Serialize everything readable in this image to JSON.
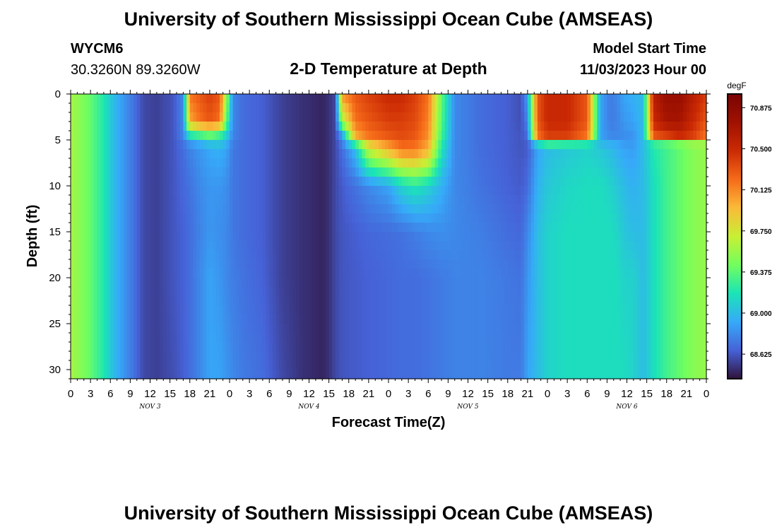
{
  "header": {
    "title": "University of Southern Mississippi Ocean Cube (AMSEAS)",
    "station": "WYCM6",
    "coordinates": "30.3260N  89.3260W",
    "subtitle": "2-D Temperature at Depth",
    "model_start_label": "Model Start Time",
    "model_start_value": "11/03/2023 Hour 00"
  },
  "footer": {
    "title": "University of Southern Mississippi Ocean Cube (AMSEAS)"
  },
  "chart_data": {
    "type": "heatmap",
    "title": "2-D Temperature at Depth",
    "xlabel": "Forecast Time(Z)",
    "ylabel": "Depth (ft)",
    "x_unit": "forecast hours from 11/03/2023 00Z",
    "xlim": [
      0,
      96
    ],
    "ylim": [
      31,
      0
    ],
    "x_tick_labels": [
      "0",
      "3",
      "6",
      "9",
      "12",
      "15",
      "18",
      "21",
      "0",
      "3",
      "6",
      "9",
      "12",
      "15",
      "18",
      "21",
      "0",
      "3",
      "6",
      "9",
      "12",
      "15",
      "18",
      "21",
      "0",
      "3",
      "6",
      "9",
      "12",
      "15",
      "18",
      "21",
      "0"
    ],
    "day_labels": [
      {
        "label": "NOV 3",
        "hour": 12
      },
      {
        "label": "NOV 4",
        "hour": 36
      },
      {
        "label": "NOV 5",
        "hour": 60
      },
      {
        "label": "NOV 6",
        "hour": 84
      }
    ],
    "y_ticks": [
      0,
      5,
      10,
      15,
      20,
      25,
      30
    ],
    "colorbar": {
      "unit": "degF",
      "min": 68.4,
      "max": 71.0,
      "tick_values": [
        70.875,
        70.5,
        70.125,
        69.75,
        69.375,
        69.0,
        68.625
      ],
      "tick_labels": [
        "70.875",
        "70.500",
        "70.125",
        "69.750",
        "69.375",
        "69.000",
        "68.625"
      ]
    },
    "column_hours": [
      0,
      3,
      5,
      6.5,
      8,
      9.5,
      11,
      13,
      15.5,
      17,
      18,
      19.5,
      21,
      22.5,
      23.5,
      24.5,
      26,
      29,
      32,
      35,
      37.5,
      38,
      39,
      40,
      41,
      43,
      45,
      48,
      50,
      52,
      54,
      56,
      58,
      62,
      66,
      68,
      69,
      70.5,
      72,
      75,
      78,
      80,
      81.5,
      82.5,
      83.5,
      85,
      86.5,
      88,
      90,
      92,
      94,
      96
    ],
    "profile_depths_ft": [
      0,
      3,
      4.5,
      5,
      6,
      10,
      15,
      20,
      31
    ],
    "temperature_degF": [
      [
        69.6,
        69.6,
        69.6,
        69.6,
        69.6,
        69.6,
        69.6,
        69.6,
        69.6
      ],
      [
        69.4,
        69.4,
        69.4,
        69.4,
        69.4,
        69.4,
        69.4,
        69.4,
        69.4
      ],
      [
        69.2,
        69.2,
        69.2,
        69.2,
        69.2,
        69.2,
        69.2,
        69.2,
        69.2
      ],
      [
        69.0,
        69.0,
        69.0,
        69.0,
        69.0,
        69.0,
        69.0,
        69.0,
        69.0
      ],
      [
        68.85,
        68.85,
        68.85,
        68.85,
        68.85,
        68.85,
        68.85,
        68.85,
        68.85
      ],
      [
        68.72,
        68.72,
        68.72,
        68.72,
        68.72,
        68.72,
        68.72,
        68.72,
        68.72
      ],
      [
        68.58,
        68.58,
        68.58,
        68.58,
        68.58,
        68.58,
        68.58,
        68.58,
        68.58
      ],
      [
        68.55,
        68.55,
        68.55,
        68.55,
        68.55,
        68.55,
        68.55,
        68.55,
        68.55
      ],
      [
        68.62,
        68.62,
        68.62,
        68.62,
        68.62,
        68.62,
        68.62,
        68.62,
        68.6
      ],
      [
        68.8,
        68.8,
        68.78,
        68.74,
        68.7,
        68.68,
        68.66,
        68.66,
        68.65
      ],
      [
        70.2,
        70.0,
        69.2,
        68.9,
        68.78,
        68.72,
        68.7,
        68.7,
        68.7
      ],
      [
        70.3,
        70.2,
        69.3,
        69.0,
        68.85,
        68.8,
        68.78,
        68.8,
        68.8
      ],
      [
        70.4,
        70.3,
        69.4,
        69.1,
        68.92,
        68.85,
        68.85,
        68.9,
        68.9
      ],
      [
        70.3,
        70.2,
        69.3,
        69.1,
        68.95,
        68.85,
        68.82,
        68.85,
        68.9
      ],
      [
        69.6,
        69.4,
        69.1,
        69.0,
        68.9,
        68.82,
        68.8,
        68.8,
        68.85
      ],
      [
        68.8,
        68.8,
        68.78,
        68.76,
        68.74,
        68.74,
        68.74,
        68.76,
        68.8
      ],
      [
        68.7,
        68.7,
        68.7,
        68.7,
        68.7,
        68.7,
        68.7,
        68.72,
        68.75
      ],
      [
        68.65,
        68.65,
        68.65,
        68.65,
        68.65,
        68.65,
        68.65,
        68.66,
        68.7
      ],
      [
        68.55,
        68.55,
        68.55,
        68.55,
        68.55,
        68.55,
        68.55,
        68.55,
        68.58
      ],
      [
        68.5,
        68.5,
        68.5,
        68.5,
        68.5,
        68.5,
        68.5,
        68.5,
        68.5
      ],
      [
        68.47,
        68.47,
        68.47,
        68.47,
        68.47,
        68.47,
        68.47,
        68.47,
        68.47
      ],
      [
        68.46,
        68.46,
        68.46,
        68.46,
        68.46,
        68.46,
        68.46,
        68.46,
        68.46
      ],
      [
        68.5,
        68.5,
        68.5,
        68.5,
        68.5,
        68.5,
        68.5,
        68.5,
        68.5
      ],
      [
        68.58,
        68.58,
        68.58,
        68.58,
        68.58,
        68.58,
        68.58,
        68.58,
        68.58
      ],
      [
        70.1,
        69.6,
        68.9,
        68.8,
        68.7,
        68.64,
        68.62,
        68.62,
        68.62
      ],
      [
        70.3,
        70.2,
        70.0,
        69.5,
        69.0,
        68.72,
        68.65,
        68.64,
        68.64
      ],
      [
        70.4,
        70.3,
        70.2,
        70.0,
        69.7,
        68.8,
        68.68,
        68.66,
        68.66
      ],
      [
        70.5,
        70.4,
        70.3,
        70.2,
        70.0,
        68.9,
        68.7,
        68.68,
        68.68
      ],
      [
        70.5,
        70.4,
        70.35,
        70.3,
        70.2,
        69.1,
        68.72,
        68.7,
        68.7
      ],
      [
        70.4,
        70.35,
        70.3,
        70.25,
        70.2,
        69.2,
        68.76,
        68.7,
        68.7
      ],
      [
        70.2,
        70.15,
        70.1,
        70.05,
        70.0,
        69.1,
        68.8,
        68.72,
        68.72
      ],
      [
        69.4,
        69.35,
        69.3,
        69.25,
        69.2,
        68.95,
        68.82,
        68.75,
        68.75
      ],
      [
        68.8,
        68.8,
        68.8,
        68.8,
        68.8,
        68.8,
        68.8,
        68.78,
        68.78
      ],
      [
        68.7,
        68.7,
        68.7,
        68.7,
        68.7,
        68.72,
        68.76,
        68.78,
        68.78
      ],
      [
        68.65,
        68.65,
        68.65,
        68.65,
        68.65,
        68.66,
        68.7,
        68.74,
        68.75
      ],
      [
        68.6,
        68.6,
        68.62,
        68.62,
        68.62,
        68.64,
        68.68,
        68.72,
        68.75
      ],
      [
        68.9,
        68.8,
        68.7,
        68.66,
        68.64,
        68.7,
        68.8,
        68.85,
        68.9
      ],
      [
        70.3,
        70.3,
        70.2,
        69.3,
        68.9,
        68.95,
        69.0,
        69.0,
        69.0
      ],
      [
        70.5,
        70.5,
        70.4,
        69.5,
        69.0,
        69.05,
        69.1,
        69.1,
        69.1
      ],
      [
        70.5,
        70.5,
        70.4,
        69.4,
        69.05,
        69.12,
        69.15,
        69.15,
        69.15
      ],
      [
        70.3,
        70.3,
        70.2,
        69.3,
        69.1,
        69.15,
        69.15,
        69.15,
        69.15
      ],
      [
        68.9,
        68.9,
        68.9,
        68.95,
        69.05,
        69.15,
        69.15,
        69.15,
        69.15
      ],
      [
        68.75,
        68.75,
        68.8,
        68.9,
        69.0,
        69.1,
        69.15,
        69.15,
        69.15
      ],
      [
        68.8,
        68.78,
        68.8,
        68.9,
        68.95,
        69.05,
        69.12,
        69.15,
        69.15
      ],
      [
        68.9,
        68.85,
        68.82,
        68.85,
        68.9,
        69.0,
        69.05,
        69.1,
        69.15
      ],
      [
        68.95,
        68.9,
        68.85,
        68.85,
        68.88,
        68.95,
        69.0,
        69.1,
        69.1
      ],
      [
        69.0,
        69.0,
        69.0,
        69.0,
        69.0,
        69.0,
        69.0,
        69.0,
        69.0
      ],
      [
        70.6,
        70.5,
        70.3,
        69.3,
        69.2,
        69.15,
        69.15,
        69.15,
        69.15
      ],
      [
        70.8,
        70.7,
        70.4,
        69.4,
        69.3,
        69.3,
        69.3,
        69.3,
        69.3
      ],
      [
        70.8,
        70.7,
        70.5,
        69.5,
        69.4,
        69.4,
        69.4,
        69.4,
        69.4
      ],
      [
        70.6,
        70.5,
        70.4,
        69.6,
        69.5,
        69.5,
        69.5,
        69.5,
        69.5
      ],
      [
        70.4,
        70.3,
        70.2,
        69.6,
        69.55,
        69.55,
        69.55,
        69.55,
        69.55
      ]
    ]
  }
}
